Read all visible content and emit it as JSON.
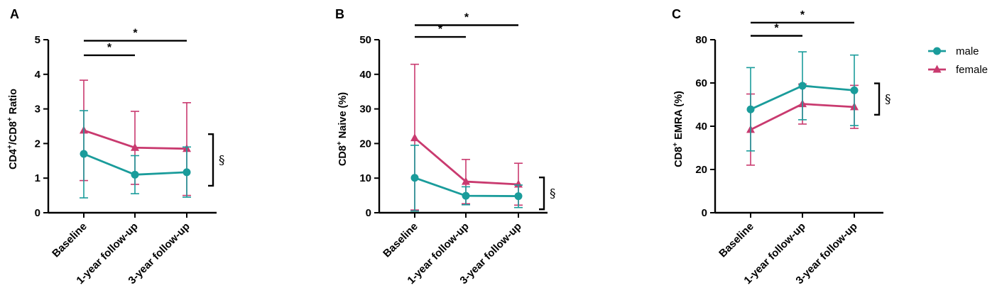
{
  "chart_data": [
    {
      "panel": "A",
      "type": "line",
      "ylabel_parts": [
        "CD4",
        "+",
        "/CD8",
        "+",
        " Ratio"
      ],
      "categories": [
        "Baseline",
        "1-year follow-up",
        "3-year follow-up"
      ],
      "ylim": [
        0,
        5
      ],
      "yticks": [
        "0",
        "1",
        "2",
        "3",
        "4",
        "5"
      ],
      "series": [
        {
          "name": "male",
          "values": [
            1.7,
            1.1,
            1.17
          ],
          "err_low": [
            0.43,
            0.55,
            0.45
          ],
          "err_high": [
            2.95,
            1.65,
            1.9
          ]
        },
        {
          "name": "female",
          "values": [
            2.38,
            1.88,
            1.85
          ],
          "err_low": [
            0.93,
            0.82,
            0.5
          ],
          "err_high": [
            3.83,
            2.93,
            3.18
          ]
        }
      ],
      "significance": [
        {
          "from": 0,
          "to": 1,
          "label": "*",
          "y": 4.55
        },
        {
          "from": 0,
          "to": 2,
          "label": "*",
          "y": 4.97
        }
      ],
      "bracket": {
        "label": "§",
        "y0": 0.78,
        "y1": 2.27
      }
    },
    {
      "panel": "B",
      "type": "line",
      "ylabel_parts": [
        "CD8",
        "+",
        " Naive (%)"
      ],
      "categories": [
        "Baseline",
        "1-year follow-up",
        "3-year follow-up"
      ],
      "ylim": [
        0,
        50
      ],
      "yticks": [
        "0",
        "10",
        "20",
        "30",
        "40",
        "50"
      ],
      "series": [
        {
          "name": "male",
          "values": [
            10.1,
            4.9,
            4.8
          ],
          "err_low": [
            0.5,
            2.3,
            1.5
          ],
          "err_high": [
            19.5,
            7.5,
            8.0
          ]
        },
        {
          "name": "female",
          "values": [
            21.6,
            9.0,
            8.2
          ],
          "err_low": [
            0.8,
            2.6,
            2.2
          ],
          "err_high": [
            42.9,
            15.4,
            14.3
          ]
        }
      ],
      "significance": [
        {
          "from": 0,
          "to": 1,
          "label": "*",
          "y": 50.8
        },
        {
          "from": 0,
          "to": 2,
          "label": "*",
          "y": 54.2
        }
      ],
      "bracket": {
        "label": "§",
        "y0": 1.0,
        "y1": 10.2
      }
    },
    {
      "panel": "C",
      "type": "line",
      "ylabel_parts": [
        "CD8",
        "+",
        " EMRA (%)"
      ],
      "categories": [
        "Baseline",
        "1-year follow-up",
        "3-year follow-up"
      ],
      "ylim": [
        0,
        80
      ],
      "yticks": [
        "0",
        "20",
        "40",
        "60",
        "80"
      ],
      "series": [
        {
          "name": "male",
          "values": [
            47.8,
            58.7,
            56.6
          ],
          "err_low": [
            28.6,
            43.0,
            40.3
          ],
          "err_high": [
            67.1,
            74.4,
            72.9
          ]
        },
        {
          "name": "female",
          "values": [
            38.4,
            50.3,
            48.9
          ],
          "err_low": [
            22.0,
            41.0,
            39.0
          ],
          "err_high": [
            54.9,
            59.5,
            58.9
          ]
        }
      ],
      "significance": [
        {
          "from": 0,
          "to": 1,
          "label": "*",
          "y": 81.8
        },
        {
          "from": 0,
          "to": 2,
          "label": "*",
          "y": 87.9
        }
      ],
      "bracket": {
        "label": "§",
        "y0": 45.3,
        "y1": 59.8
      }
    }
  ],
  "legend": [
    {
      "label": "male",
      "color": "#1a9c9b",
      "marker": "circle"
    },
    {
      "label": "female",
      "color": "#c93a6f",
      "marker": "triangle"
    }
  ],
  "colors": {
    "male": "#1a9c9b",
    "female": "#c93a6f"
  }
}
